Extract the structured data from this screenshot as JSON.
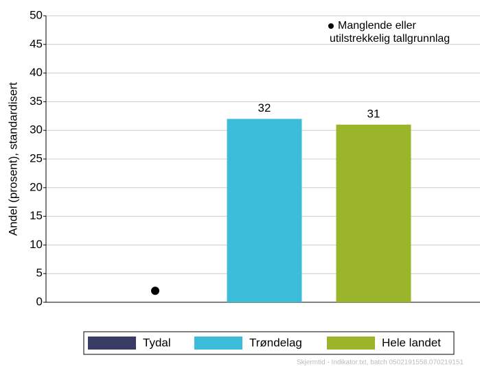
{
  "chart_data": {
    "type": "bar",
    "y_label": "Andel (prosent), standardisert",
    "categories": [
      "Tydal",
      "Trøndelag",
      "Hele landet"
    ],
    "series": [
      {
        "name": "Andel",
        "values": [
          null,
          32,
          31
        ]
      }
    ],
    "colors": [
      "#383c63",
      "#3bbcd9",
      "#9bb52b"
    ],
    "ylim": [
      0,
      50
    ],
    "yticks": [
      0,
      5,
      10,
      15,
      20,
      25,
      30,
      35,
      40,
      45,
      50
    ],
    "grid": true,
    "annotation": [
      "Manglende eller",
      "utilstrekkelig tallgrunnlag"
    ],
    "footer": "Skjermtid - Indikator.txt, batch 0502191558.070219151"
  }
}
